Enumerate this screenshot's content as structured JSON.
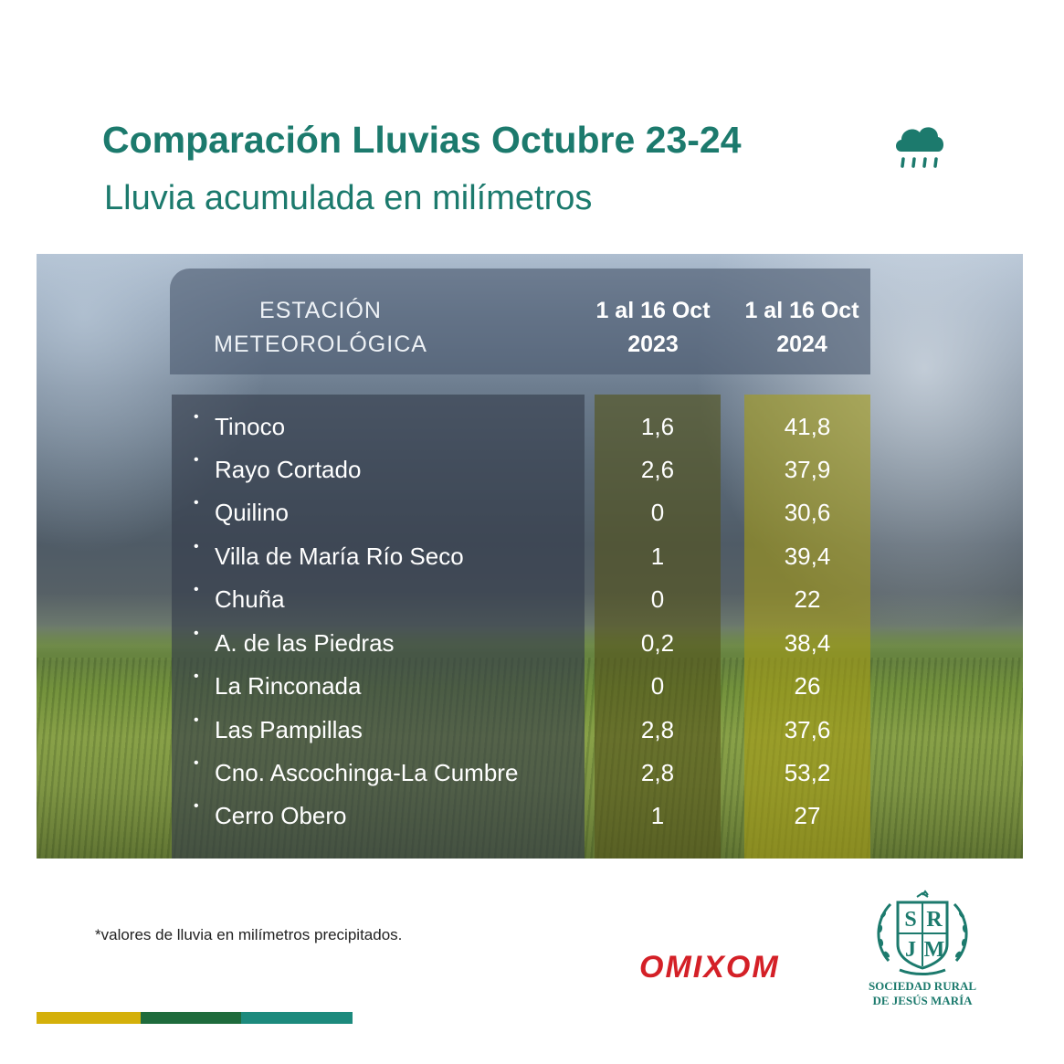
{
  "header": {
    "title": "Comparación Lluvias Octubre 23-24",
    "subtitle": "Lluvia acumulada en milímetros",
    "title_icon": "rain-cloud-icon"
  },
  "table": {
    "station_header_line1": "ESTACIÓN",
    "station_header_line2": "METEOROLÓGICA",
    "col_2023_line1": "1 al 16 Oct",
    "col_2023_line2": "2023",
    "col_2024_line1": "1 al 16 Oct",
    "col_2024_line2": "2024",
    "bullet": "•",
    "rows": [
      {
        "station": "Tinoco",
        "v2023": "1,6",
        "v2024": "41,8"
      },
      {
        "station": "Rayo Cortado",
        "v2023": "2,6",
        "v2024": "37,9"
      },
      {
        "station": "Quilino",
        "v2023": "0",
        "v2024": "30,6"
      },
      {
        "station": "Villa de María Río Seco",
        "v2023": "1",
        "v2024": "39,4"
      },
      {
        "station": "Chuña",
        "v2023": "0",
        "v2024": "22"
      },
      {
        "station": "A. de las Piedras",
        "v2023": "0,2",
        "v2024": "38,4"
      },
      {
        "station": "La Rinconada",
        "v2023": "0",
        "v2024": "26"
      },
      {
        "station": "Las Pampillas",
        "v2023": "2,8",
        "v2024": "37,6"
      },
      {
        "station": "Cno. Ascochinga-La Cumbre",
        "v2023": "2,8",
        "v2024": "53,2"
      },
      {
        "station": "Cerro Obero",
        "v2023": "1",
        "v2024": "27"
      }
    ]
  },
  "footer": {
    "footnote": "*valores de lluvia en milímetros precipitados.",
    "omixom_logo": "OMIXOM",
    "srjm_monogram": "SRJM",
    "srjm_name_line1": "SOCIEDAD RURAL",
    "srjm_name_line2": "DE JESÚS MARÍA"
  },
  "colors": {
    "brand_teal": "#1c7a6d",
    "omixom_red": "#d42027",
    "stripe_gold": "#d4b00a",
    "stripe_green": "#1e6b3c",
    "stripe_teal": "#1c8a7d"
  }
}
